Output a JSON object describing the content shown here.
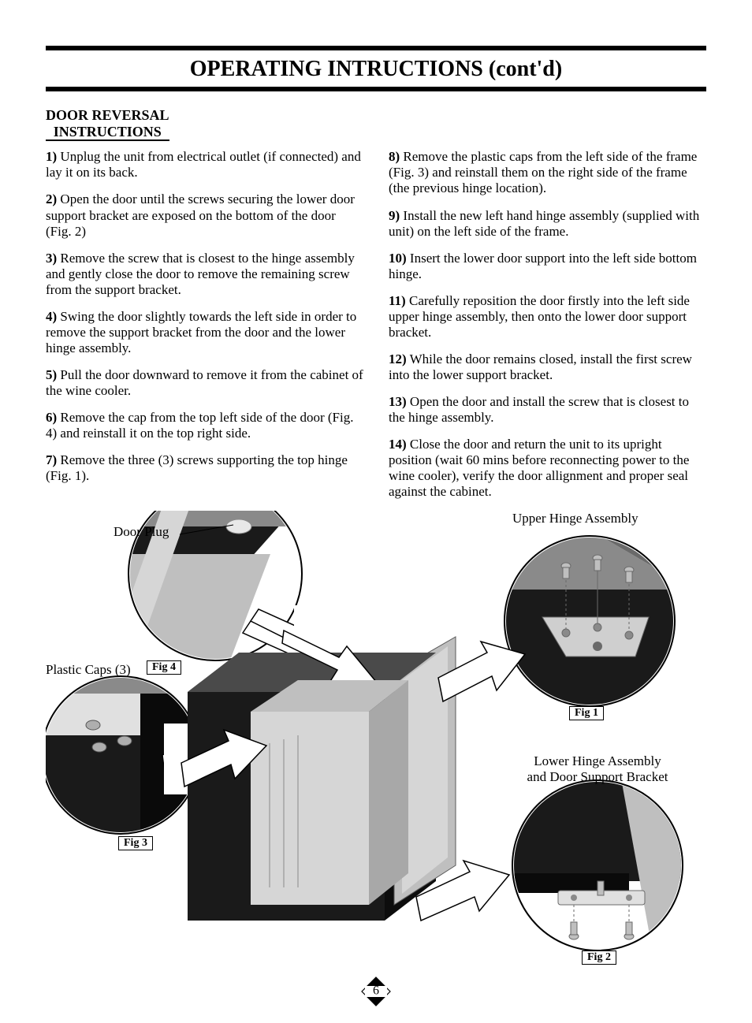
{
  "title": "OPERATING INTRUCTIONS (cont'd)",
  "section_heading_line1": "DOOR REVERSAL",
  "section_heading_line2": "INSTRUCTIONS",
  "left_steps": [
    {
      "n": "1)",
      "t": " Unplug the unit from electrical outlet (if connected) and lay it on its back."
    },
    {
      "n": "2)",
      "t": " Open the door until the screws securing the lower door support bracket are exposed on the bottom of the door (Fig. 2)"
    },
    {
      "n": "3)",
      "t": " Remove the screw that is closest to the hinge assembly and gently close the door to remove the remaining screw from the support bracket."
    },
    {
      "n": "4)",
      "t": " Swing the door slightly towards the left side in order to remove the support bracket from the door and the lower hinge assembly."
    },
    {
      "n": "5)",
      "t": " Pull the door downward to remove it from the cabinet of the wine cooler."
    },
    {
      "n": "6)",
      "t": " Remove the cap from the top left side of the door (Fig. 4) and reinstall it on the top right side."
    },
    {
      "n": "7)",
      "t": " Remove the three (3) screws supporting the top hinge (Fig. 1)."
    }
  ],
  "right_steps": [
    {
      "n": "8)",
      "t": " Remove the plastic caps from the left side of the frame (Fig. 3) and reinstall them on the right side of the frame (the previous hinge location)."
    },
    {
      "n": "9)",
      "t": " Install the new left hand hinge assembly (supplied with unit) on the left side of the frame."
    },
    {
      "n": "10)",
      "t": " Insert the lower door support into the left side bottom hinge."
    },
    {
      "n": "11)",
      "t": " Carefully reposition the door firstly into the left side upper hinge assembly, then onto the lower door support bracket."
    },
    {
      "n": "12)",
      "t": " While the door remains closed, install the first screw into the lower support bracket."
    },
    {
      "n": "13)",
      "t": " Open the door and install the screw that is closest to the hinge assembly."
    },
    {
      "n": "14)",
      "t": " Close the door and return the unit to its upright position (wait 60 mins before reconnecting power to the wine cooler), verify the door allignment and proper seal against the cabinet."
    }
  ],
  "labels": {
    "door_plug": "Door Plug",
    "upper_hinge": "Upper Hinge Assembly",
    "plastic_caps": "Plastic Caps (3)",
    "lower_hinge_l1": "Lower Hinge Assembly",
    "lower_hinge_l2": "and Door Support Bracket",
    "fig1": "Fig 1",
    "fig2": "Fig 2",
    "fig3": "Fig 3",
    "fig4": "Fig 4"
  },
  "page_number": "6",
  "colors": {
    "black": "#000000",
    "dark": "#1a1a1a",
    "mid_gray": "#8a8a8a",
    "light_gray": "#bfbfbf",
    "lighter_gray": "#d6d6d6",
    "white": "#ffffff"
  }
}
